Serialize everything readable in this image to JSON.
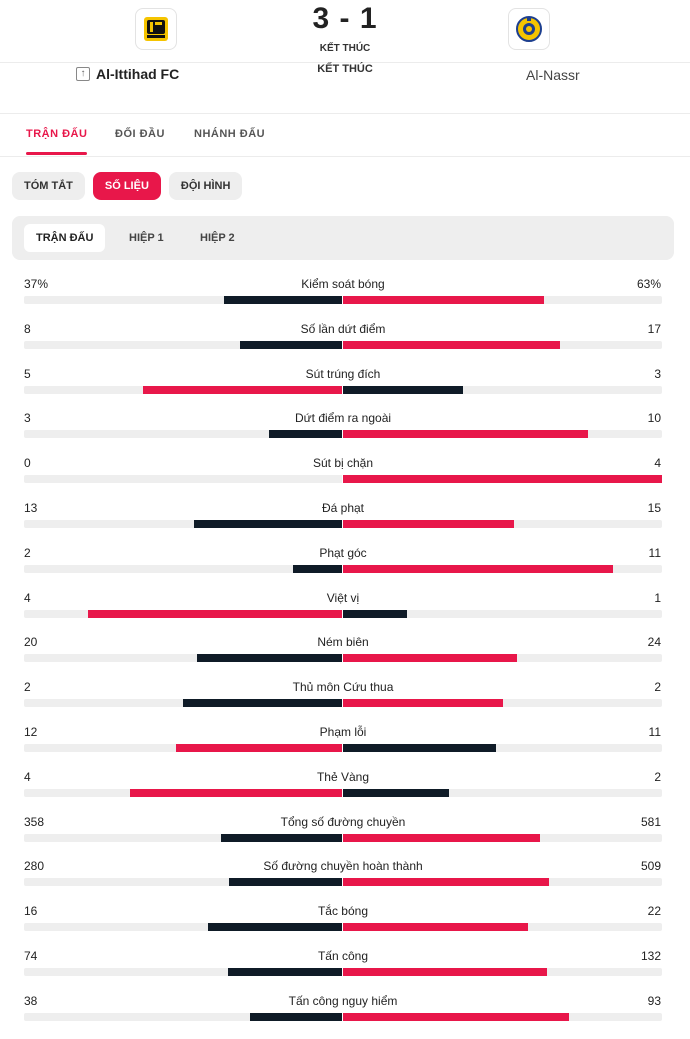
{
  "match": {
    "score": "3 - 1",
    "status_small": "KẾT THÚC",
    "status_big": "KẾT THÚC",
    "home_team": "Al-Ittihad FC",
    "away_team": "Al-Nassr",
    "home_logo_text": "ITTIHAD",
    "away_logo_text": "AL NASSR"
  },
  "tabs": [
    "TRẬN ĐẤU",
    "ĐỐI ĐẦU",
    "NHÁNH ĐẤU"
  ],
  "pills": [
    "TÓM TẮT",
    "SỐ LIỆU",
    "ĐỘI HÌNH"
  ],
  "periods": [
    "TRẬN ĐẤU",
    "HIỆP 1",
    "HIỆP 2"
  ],
  "colors": {
    "accent": "#e8174a",
    "dark": "#0f1b27",
    "track": "#eeeeee"
  },
  "stats": [
    {
      "label": "Kiểm soát bóng",
      "home": "37%",
      "away": "63%",
      "h": 37,
      "a": 63,
      "max": 100,
      "leader": "away"
    },
    {
      "label": "Số lần dứt điểm",
      "home": "8",
      "away": "17",
      "h": 8,
      "a": 17,
      "leader": "away"
    },
    {
      "label": "Sút trúng đích",
      "home": "5",
      "away": "3",
      "h": 5,
      "a": 3,
      "leader": "home"
    },
    {
      "label": "Dứt điểm ra ngoài",
      "home": "3",
      "away": "10",
      "h": 3,
      "a": 10,
      "leader": "away"
    },
    {
      "label": "Sút bị chặn",
      "home": "0",
      "away": "4",
      "h": 0,
      "a": 4,
      "leader": "away"
    },
    {
      "label": "Đá phạt",
      "home": "13",
      "away": "15",
      "h": 13,
      "a": 15,
      "leader": "away"
    },
    {
      "label": "Phạt góc",
      "home": "2",
      "away": "11",
      "h": 2,
      "a": 11,
      "leader": "away"
    },
    {
      "label": "Việt vị",
      "home": "4",
      "away": "1",
      "h": 4,
      "a": 1,
      "leader": "home"
    },
    {
      "label": "Ném biên",
      "home": "20",
      "away": "24",
      "h": 20,
      "a": 24,
      "leader": "away"
    },
    {
      "label": "Thủ môn Cứu thua",
      "home": "2",
      "away": "2",
      "h": 2,
      "a": 2,
      "leader": "none"
    },
    {
      "label": "Phạm lỗi",
      "home": "12",
      "away": "11",
      "h": 12,
      "a": 11,
      "leader": "home"
    },
    {
      "label": "Thẻ Vàng",
      "home": "4",
      "away": "2",
      "h": 4,
      "a": 2,
      "leader": "home"
    },
    {
      "label": "Tổng số đường chuyền",
      "home": "358",
      "away": "581",
      "h": 358,
      "a": 581,
      "leader": "away"
    },
    {
      "label": "Số đường chuyền hoàn thành",
      "home": "280",
      "away": "509",
      "h": 280,
      "a": 509,
      "leader": "away"
    },
    {
      "label": "Tắc bóng",
      "home": "16",
      "away": "22",
      "h": 16,
      "a": 22,
      "leader": "away"
    },
    {
      "label": "Tấn công",
      "home": "74",
      "away": "132",
      "h": 74,
      "a": 132,
      "leader": "away"
    },
    {
      "label": "Tấn công nguy hiểm",
      "home": "38",
      "away": "93",
      "h": 38,
      "a": 93,
      "leader": "away"
    }
  ]
}
